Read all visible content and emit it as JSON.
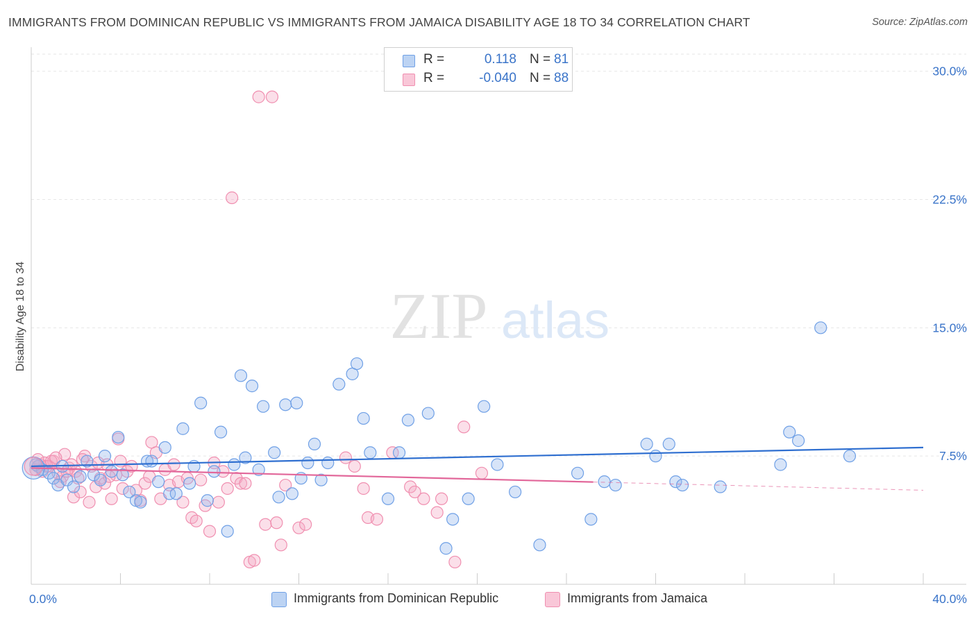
{
  "header": {
    "title": "IMMIGRANTS FROM DOMINICAN REPUBLIC VS IMMIGRANTS FROM JAMAICA DISABILITY AGE 18 TO 34 CORRELATION CHART",
    "source": "Source: ZipAtlas.com"
  },
  "watermark": {
    "zip": "ZIP",
    "atlas": "atlas"
  },
  "legend": {
    "rows": [
      {
        "r_label": "R =",
        "r_value": "0.118",
        "n_label": "N =",
        "n_value": "81",
        "color": "#6fa0e6"
      },
      {
        "r_label": "R =",
        "r_value": "-0.040",
        "n_label": "N =",
        "n_value": "88",
        "color": "#f08fb0"
      }
    ]
  },
  "bottom_legend": {
    "items": [
      {
        "label": "Immigrants from Dominican Republic",
        "color": "#6fa0e6"
      },
      {
        "label": "Immigrants from Jamaica",
        "color": "#f08fb0"
      }
    ]
  },
  "chart_data": {
    "type": "scatter",
    "title": "IMMIGRANTS FROM DOMINICAN REPUBLIC VS IMMIGRANTS FROM JAMAICA DISABILITY AGE 18 TO 34 CORRELATION CHART",
    "xlabel": "",
    "ylabel": "Disability Age 18 to 34",
    "xlim": [
      0,
      40
    ],
    "ylim": [
      0,
      31
    ],
    "x_tick_labels": [
      "0.0%",
      "40.0%"
    ],
    "y_ticks": [
      7.5,
      15.0,
      22.5,
      30.0
    ],
    "y_tick_labels": [
      "7.5%",
      "15.0%",
      "22.5%",
      "30.0%"
    ],
    "grid": true,
    "series": [
      {
        "name": "Immigrants from Dominican Republic",
        "color": "#6fa0e6",
        "trend": {
          "x": [
            0,
            40
          ],
          "y": [
            6.9,
            8.0
          ],
          "dashed_from": null
        },
        "points": [
          [
            0.3,
            6.9
          ],
          [
            0.5,
            6.7
          ],
          [
            0.8,
            6.5
          ],
          [
            1.0,
            6.2
          ],
          [
            1.2,
            5.8
          ],
          [
            1.4,
            6.9
          ],
          [
            1.6,
            6.1
          ],
          [
            1.9,
            5.7
          ],
          [
            2.2,
            6.3
          ],
          [
            2.5,
            7.2
          ],
          [
            2.8,
            6.4
          ],
          [
            3.1,
            6.1
          ],
          [
            3.3,
            7.5
          ],
          [
            3.6,
            6.6
          ],
          [
            3.9,
            8.6
          ],
          [
            4.1,
            6.4
          ],
          [
            4.4,
            5.4
          ],
          [
            4.7,
            4.9
          ],
          [
            4.9,
            4.8
          ],
          [
            5.2,
            7.2
          ],
          [
            5.4,
            7.2
          ],
          [
            5.7,
            6.0
          ],
          [
            6.0,
            8.0
          ],
          [
            6.2,
            5.3
          ],
          [
            6.5,
            5.3
          ],
          [
            6.8,
            9.1
          ],
          [
            7.1,
            5.9
          ],
          [
            7.3,
            6.9
          ],
          [
            7.6,
            10.6
          ],
          [
            7.9,
            4.9
          ],
          [
            8.2,
            6.6
          ],
          [
            8.5,
            8.9
          ],
          [
            8.8,
            3.1
          ],
          [
            9.1,
            7.0
          ],
          [
            9.4,
            12.2
          ],
          [
            9.6,
            7.4
          ],
          [
            9.9,
            11.6
          ],
          [
            10.2,
            6.7
          ],
          [
            10.4,
            10.4
          ],
          [
            10.9,
            7.7
          ],
          [
            11.1,
            5.1
          ],
          [
            11.4,
            10.5
          ],
          [
            11.7,
            5.3
          ],
          [
            11.9,
            10.6
          ],
          [
            12.1,
            6.2
          ],
          [
            12.4,
            7.1
          ],
          [
            12.7,
            8.2
          ],
          [
            13.0,
            6.1
          ],
          [
            13.3,
            7.1
          ],
          [
            13.8,
            11.7
          ],
          [
            14.4,
            12.3
          ],
          [
            14.6,
            12.9
          ],
          [
            14.9,
            9.7
          ],
          [
            15.2,
            7.7
          ],
          [
            16.0,
            5.0
          ],
          [
            16.5,
            7.7
          ],
          [
            16.9,
            9.6
          ],
          [
            17.8,
            10.0
          ],
          [
            18.6,
            2.1
          ],
          [
            18.9,
            3.8
          ],
          [
            19.6,
            5.0
          ],
          [
            20.3,
            10.4
          ],
          [
            20.9,
            7.0
          ],
          [
            21.7,
            5.4
          ],
          [
            22.8,
            2.3
          ],
          [
            24.5,
            6.5
          ],
          [
            25.1,
            3.8
          ],
          [
            25.7,
            6.0
          ],
          [
            26.2,
            5.8
          ],
          [
            27.6,
            8.2
          ],
          [
            28.0,
            7.5
          ],
          [
            28.6,
            8.2
          ],
          [
            28.9,
            6.0
          ],
          [
            29.2,
            5.8
          ],
          [
            30.9,
            5.7
          ],
          [
            33.6,
            7.0
          ],
          [
            34.0,
            8.9
          ],
          [
            34.4,
            8.4
          ],
          [
            35.4,
            15.0
          ],
          [
            36.7,
            7.5
          ],
          [
            0.2,
            7.0
          ]
        ]
      },
      {
        "name": "Immigrants from Jamaica",
        "color": "#f08fb0",
        "trend": {
          "x": [
            0,
            40
          ],
          "y": [
            6.8,
            5.5
          ],
          "dashed_from": 25.2
        },
        "points": [
          [
            0.2,
            6.7
          ],
          [
            0.4,
            7.0
          ],
          [
            0.6,
            7.1
          ],
          [
            0.8,
            6.9
          ],
          [
            1.0,
            7.2
          ],
          [
            1.2,
            6.5
          ],
          [
            1.4,
            6.3
          ],
          [
            1.5,
            7.6
          ],
          [
            1.7,
            6.8
          ],
          [
            1.9,
            5.1
          ],
          [
            2.0,
            6.6
          ],
          [
            2.2,
            5.4
          ],
          [
            2.4,
            7.5
          ],
          [
            2.6,
            4.8
          ],
          [
            2.9,
            5.7
          ],
          [
            3.1,
            6.2
          ],
          [
            3.3,
            5.9
          ],
          [
            3.4,
            7.0
          ],
          [
            3.6,
            5.0
          ],
          [
            3.8,
            6.4
          ],
          [
            3.9,
            8.5
          ],
          [
            4.1,
            5.6
          ],
          [
            4.3,
            6.6
          ],
          [
            4.5,
            6.9
          ],
          [
            4.7,
            5.5
          ],
          [
            4.9,
            4.9
          ],
          [
            5.1,
            5.9
          ],
          [
            5.3,
            6.3
          ],
          [
            5.4,
            8.3
          ],
          [
            5.6,
            7.7
          ],
          [
            5.8,
            5.0
          ],
          [
            6.0,
            6.7
          ],
          [
            6.2,
            5.8
          ],
          [
            6.4,
            7.0
          ],
          [
            6.6,
            6.0
          ],
          [
            6.8,
            4.8
          ],
          [
            7.0,
            6.2
          ],
          [
            7.2,
            3.9
          ],
          [
            7.4,
            3.7
          ],
          [
            7.6,
            6.1
          ],
          [
            7.8,
            4.6
          ],
          [
            8.0,
            3.1
          ],
          [
            8.2,
            7.1
          ],
          [
            8.4,
            4.8
          ],
          [
            8.6,
            6.6
          ],
          [
            8.8,
            5.6
          ],
          [
            9.0,
            22.6
          ],
          [
            9.2,
            6.2
          ],
          [
            9.4,
            5.9
          ],
          [
            9.6,
            5.9
          ],
          [
            9.8,
            1.3
          ],
          [
            10.0,
            1.4
          ],
          [
            10.2,
            28.5
          ],
          [
            10.5,
            3.5
          ],
          [
            10.8,
            28.5
          ],
          [
            11.0,
            3.6
          ],
          [
            11.2,
            2.3
          ],
          [
            11.4,
            5.8
          ],
          [
            12.0,
            3.3
          ],
          [
            12.3,
            3.5
          ],
          [
            14.1,
            7.4
          ],
          [
            14.5,
            6.9
          ],
          [
            14.9,
            5.6
          ],
          [
            15.1,
            3.9
          ],
          [
            15.5,
            3.8
          ],
          [
            16.2,
            7.7
          ],
          [
            17.0,
            5.7
          ],
          [
            17.2,
            5.4
          ],
          [
            17.6,
            5.0
          ],
          [
            18.2,
            4.2
          ],
          [
            18.4,
            5.0
          ],
          [
            19.0,
            1.3
          ],
          [
            19.4,
            9.2
          ],
          [
            20.2,
            6.5
          ],
          [
            0.3,
            7.3
          ],
          [
            0.5,
            6.6
          ],
          [
            0.7,
            6.9
          ],
          [
            0.9,
            7.2
          ],
          [
            1.1,
            7.4
          ],
          [
            1.3,
            6.0
          ],
          [
            1.6,
            6.6
          ],
          [
            1.8,
            7.0
          ],
          [
            2.1,
            6.2
          ],
          [
            2.3,
            7.3
          ],
          [
            2.7,
            6.9
          ],
          [
            3.0,
            7.1
          ],
          [
            3.5,
            6.3
          ],
          [
            4.0,
            7.2
          ]
        ]
      }
    ]
  }
}
